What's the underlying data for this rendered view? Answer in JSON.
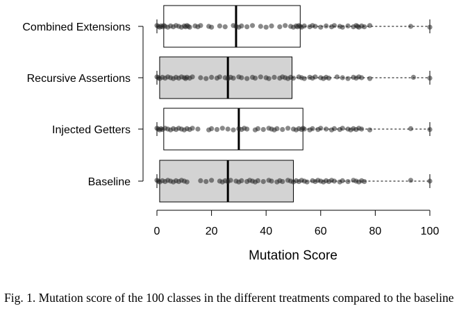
{
  "caption": "Fig. 1.  Mutation score of the 100 classes in the different treatments compared to the baseline",
  "colors": {
    "gray_box": "#d3d3d3",
    "white_box": "#ffffff",
    "ink": "#000000",
    "point": "#555555"
  },
  "chart_data": {
    "type": "boxplot",
    "orientation": "horizontal",
    "xlabel": "Mutation Score",
    "xlim": [
      0,
      100
    ],
    "xticks": [
      0,
      20,
      40,
      60,
      80,
      100
    ],
    "grid": false,
    "legend": "none",
    "categories": [
      "Combined Extensions",
      "Recursive Assertions",
      "Injected Getters",
      "Baseline"
    ],
    "series": [
      {
        "category": "Combined Extensions",
        "fill": "#ffffff",
        "whisker_low": 0,
        "q1": 2.5,
        "median": 29,
        "q3": 52.5,
        "whisker_high": 100,
        "points": [
          0,
          0.5,
          1,
          1.5,
          2,
          2.5,
          3,
          4,
          5,
          6,
          7,
          8,
          9,
          10,
          10.5,
          11,
          11.5,
          12,
          14,
          15,
          16,
          19,
          20,
          23,
          25,
          28,
          29,
          30,
          31,
          33,
          35,
          38,
          40,
          42,
          45,
          47,
          49,
          50,
          51,
          51.5,
          52,
          52.5,
          53,
          54,
          56,
          57,
          58,
          60,
          62,
          64,
          65,
          67,
          68,
          70,
          72,
          73,
          73.5,
          74,
          75,
          76,
          78,
          93,
          100
        ]
      },
      {
        "category": "Recursive Assertions",
        "fill": "#d3d3d3",
        "whisker_low": 0,
        "q1": 1,
        "median": 26,
        "q3": 49.5,
        "whisker_high": 100,
        "points": [
          0,
          0.5,
          1,
          2,
          3,
          4,
          5,
          6,
          7,
          8,
          9,
          10,
          10.5,
          11,
          12,
          13,
          16,
          18,
          20,
          22,
          23,
          25,
          26,
          27,
          28,
          30,
          31,
          33,
          35,
          36,
          38,
          40,
          41,
          43,
          45,
          46,
          47,
          48,
          49,
          50,
          52,
          53,
          54,
          56,
          57,
          58,
          60,
          61,
          62,
          63,
          66,
          68,
          70,
          72,
          73,
          74,
          75,
          78,
          94,
          100
        ]
      },
      {
        "category": "Injected Getters",
        "fill": "#ffffff",
        "whisker_low": 0,
        "q1": 2.5,
        "median": 30,
        "q3": 53.5,
        "whisker_high": 100,
        "points": [
          0,
          0.5,
          1,
          1.5,
          2,
          3,
          4,
          5,
          6,
          7,
          8,
          9,
          10,
          11,
          12,
          13,
          15,
          19,
          20,
          22,
          24,
          26,
          28,
          30,
          31,
          32,
          33,
          36,
          37,
          39,
          41,
          42,
          43,
          44,
          46,
          48,
          50,
          51,
          52,
          53,
          53.5,
          54,
          56,
          57,
          59,
          60,
          62,
          64,
          65,
          67,
          68,
          70,
          71,
          72,
          73,
          74,
          75,
          78,
          93,
          100
        ]
      },
      {
        "category": "Baseline",
        "fill": "#d3d3d3",
        "whisker_low": 0,
        "q1": 1,
        "median": 26,
        "q3": 50,
        "whisker_high": 100,
        "points": [
          0,
          0.5,
          1,
          2,
          3,
          4,
          5,
          6,
          7,
          8,
          9,
          10,
          11,
          16,
          18,
          20,
          23,
          24,
          25,
          26,
          27,
          29,
          30,
          31,
          33,
          34,
          35,
          36,
          37,
          39,
          41,
          42,
          44,
          45,
          46,
          48,
          49,
          50,
          51,
          52,
          53,
          54,
          55,
          57,
          58,
          59,
          60,
          61,
          62,
          63,
          64,
          65,
          67,
          68,
          70,
          72,
          73,
          74,
          75,
          76,
          93,
          100
        ]
      }
    ]
  }
}
